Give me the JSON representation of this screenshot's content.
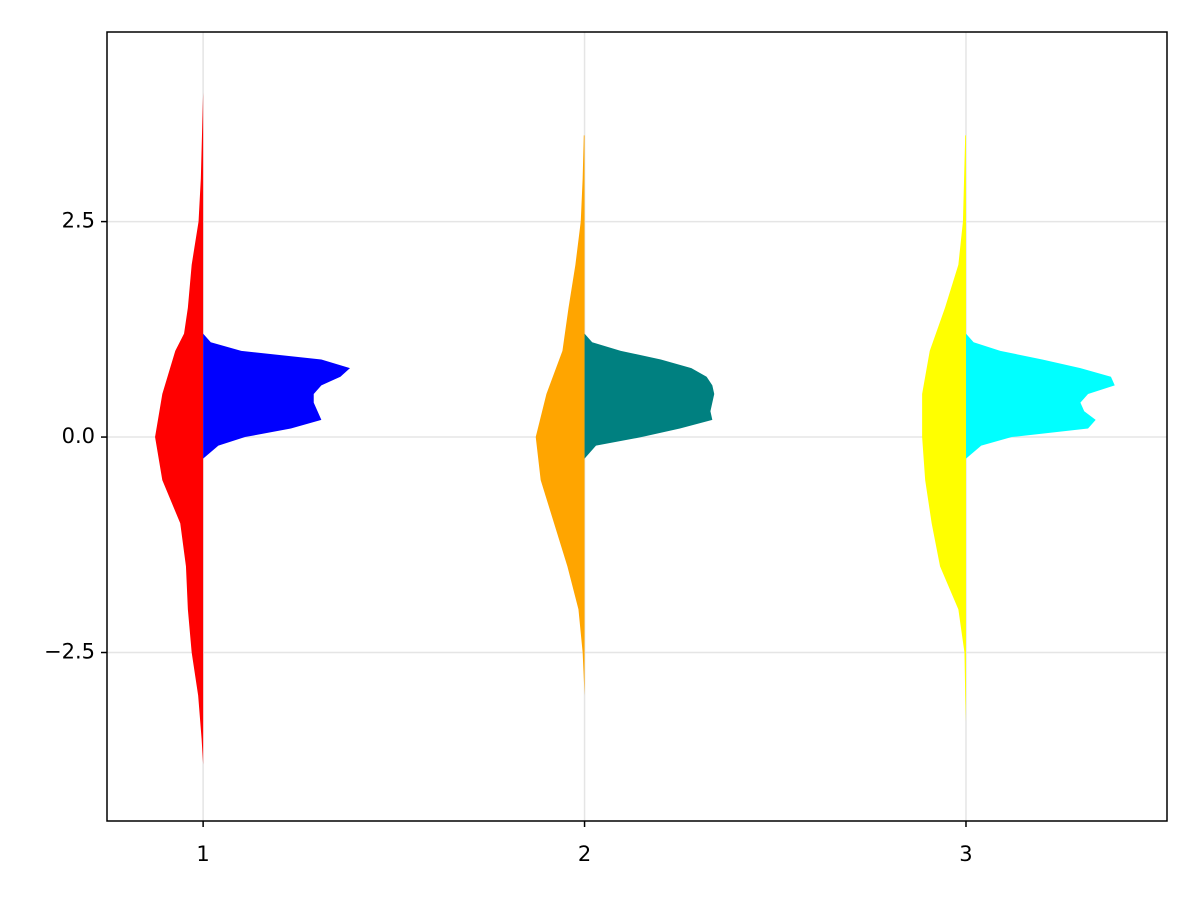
{
  "chart_data": {
    "type": "violin",
    "orientation": "vertical",
    "xlim": [
      0.748,
      3.527
    ],
    "ylim": [
      -4.455,
      4.7
    ],
    "xticks": [
      1,
      2,
      3
    ],
    "yticks": [
      {
        "value": -2.5,
        "label": "−2.5"
      },
      {
        "value": 0,
        "label": "0.0"
      },
      2.5
    ],
    "grid": true,
    "series": [
      {
        "x": 1,
        "side": "left",
        "color": "#ff0000",
        "y": [
          -3.8,
          -3.5,
          -3.0,
          -2.5,
          -2.0,
          -1.5,
          -1.0,
          -0.5,
          0,
          0.5,
          1.0,
          1.2,
          1.5,
          2.0,
          2.5,
          3.0,
          3.5,
          4.0
        ],
        "density": [
          0,
          0.004,
          0.013,
          0.03,
          0.04,
          0.045,
          0.06,
          0.107,
          0.126,
          0.107,
          0.073,
          0.05,
          0.04,
          0.03,
          0.012,
          0.006,
          0.003,
          0
        ]
      },
      {
        "x": 1,
        "side": "right",
        "color": "#0000ff",
        "y": [
          -0.25,
          -0.1,
          0,
          0.1,
          0.2,
          0.3,
          0.4,
          0.5,
          0.6,
          0.7,
          0.8,
          0.9,
          1.0,
          1.1,
          1.2
        ],
        "density": [
          0,
          0.04,
          0.11,
          0.23,
          0.31,
          0.3,
          0.29,
          0.29,
          0.31,
          0.36,
          0.385,
          0.31,
          0.1,
          0.02,
          0
        ]
      },
      {
        "x": 2,
        "side": "left",
        "color": "#ffa500",
        "y": [
          -3.0,
          -2.5,
          -2.0,
          -1.5,
          -1.0,
          -0.5,
          0,
          0.5,
          1.0,
          1.5,
          2.0,
          2.5,
          3.0,
          3.5
        ],
        "density": [
          0,
          0.005,
          0.016,
          0.045,
          0.08,
          0.115,
          0.128,
          0.1,
          0.058,
          0.042,
          0.024,
          0.01,
          0.005,
          0.002
        ]
      },
      {
        "x": 2,
        "side": "right",
        "color": "#008080",
        "y": [
          -0.25,
          -0.1,
          0,
          0.1,
          0.2,
          0.3,
          0.4,
          0.5,
          0.6,
          0.7,
          0.8,
          0.9,
          1.0,
          1.1,
          1.2
        ],
        "density": [
          0,
          0.03,
          0.15,
          0.25,
          0.335,
          0.33,
          0.335,
          0.34,
          0.335,
          0.32,
          0.28,
          0.2,
          0.095,
          0.02,
          0
        ]
      },
      {
        "x": 3,
        "side": "left",
        "color": "#ffff00",
        "y": [
          -3.3,
          -3.0,
          -2.5,
          -2.0,
          -1.5,
          -1.0,
          -0.5,
          0,
          0.5,
          1.0,
          1.5,
          2.0,
          2.5,
          3.0,
          3.5
        ],
        "density": [
          0,
          0.002,
          0.004,
          0.02,
          0.068,
          0.09,
          0.107,
          0.115,
          0.115,
          0.095,
          0.055,
          0.02,
          0.008,
          0.005,
          0.002
        ]
      },
      {
        "x": 3,
        "side": "right",
        "color": "#00ffff",
        "y": [
          -0.25,
          -0.1,
          0,
          0.1,
          0.2,
          0.3,
          0.4,
          0.5,
          0.6,
          0.7,
          0.8,
          0.9,
          1.0,
          1.1,
          1.2
        ],
        "density": [
          0,
          0.04,
          0.12,
          0.32,
          0.34,
          0.31,
          0.3,
          0.32,
          0.39,
          0.38,
          0.3,
          0.2,
          0.09,
          0.02,
          0
        ]
      }
    ]
  }
}
